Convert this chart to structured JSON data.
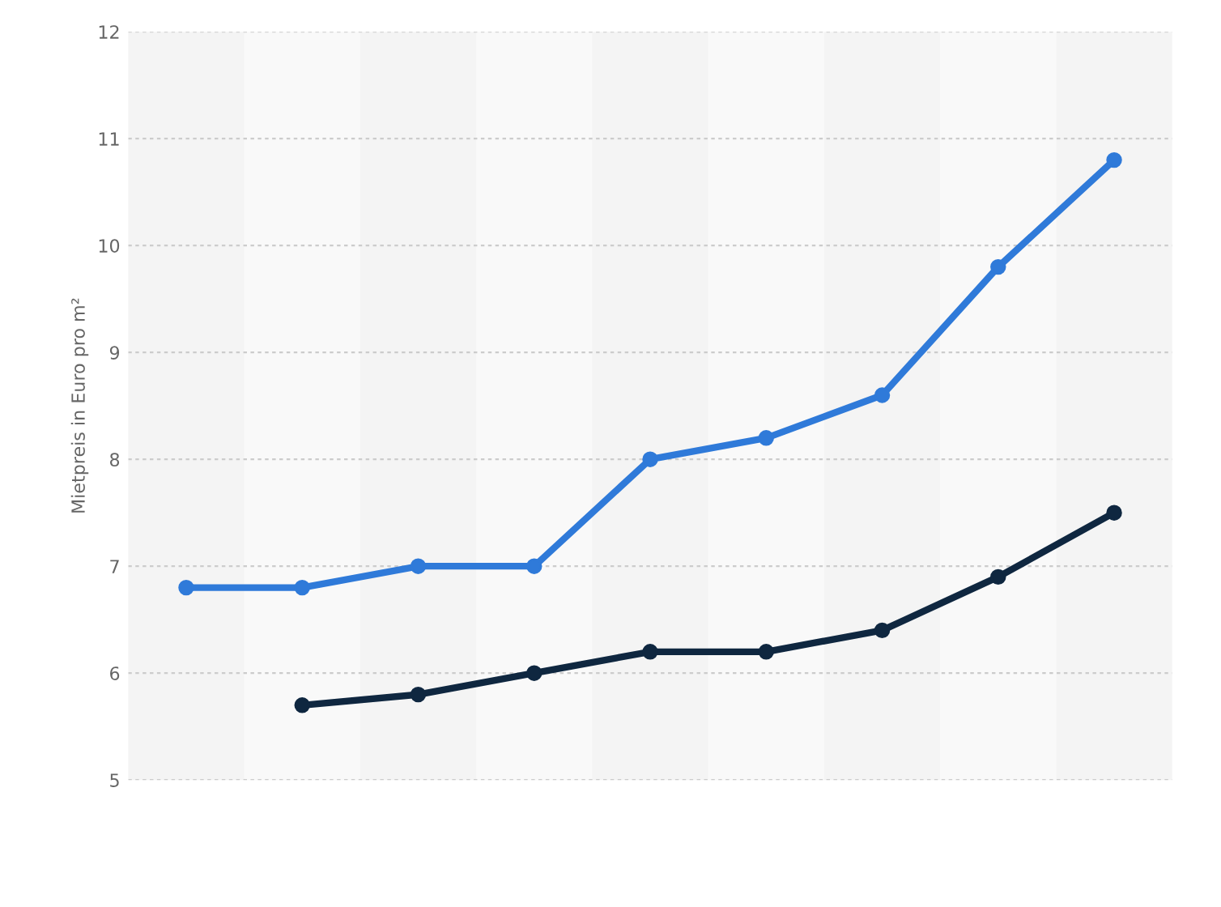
{
  "chart_data": {
    "type": "line",
    "ylabel": "Mietpreis in Euro pro m²",
    "categories": [
      null,
      null,
      null,
      null,
      null,
      null,
      null,
      null,
      null
    ],
    "series": [
      {
        "color": "#2f7ad9",
        "values": [
          6.8,
          6.8,
          7.0,
          7.0,
          8.0,
          8.2,
          8.6,
          9.8,
          10.8
        ]
      },
      {
        "color": "#0f2740",
        "values": [
          null,
          5.7,
          5.8,
          6.0,
          6.2,
          6.2,
          6.4,
          6.9,
          7.5
        ]
      }
    ],
    "ylim": [
      5,
      12
    ],
    "yticks": [
      5,
      6,
      7,
      8,
      9,
      10,
      11,
      12
    ],
    "grid": "y",
    "marker": "circle",
    "line_style": "solid",
    "legend": false,
    "tick_labels": "y"
  }
}
